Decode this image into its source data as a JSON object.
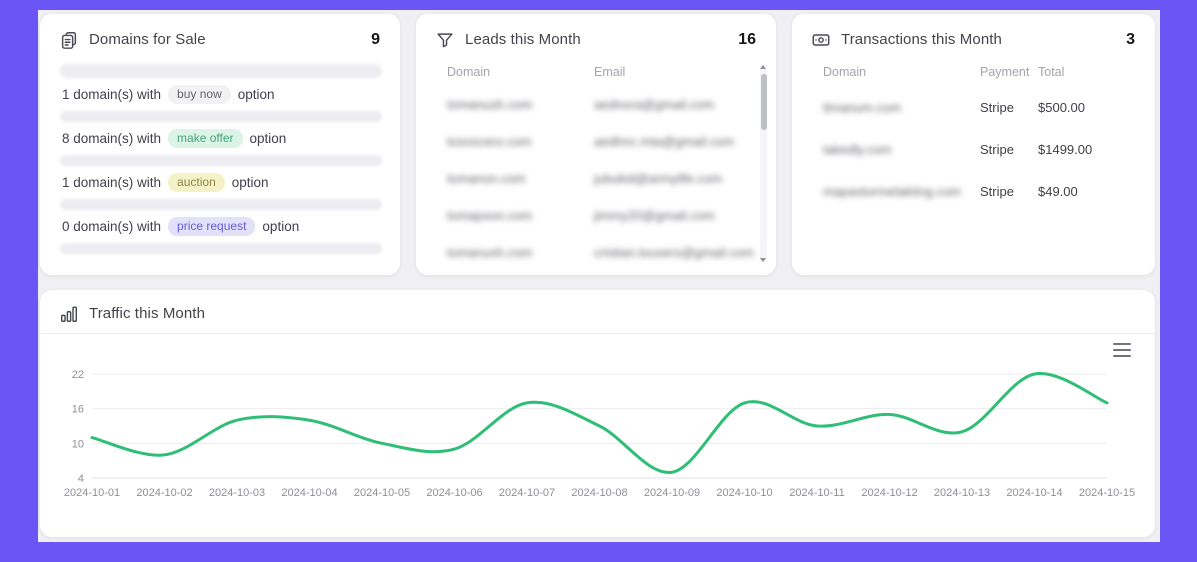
{
  "theme": {
    "frame_color": "#6c55f5",
    "page_bg": "#f0f0f4",
    "card_bg": "#ffffff",
    "accent_green": "#2fbe76"
  },
  "domains_card": {
    "icon": "documents-icon",
    "title": "Domains for Sale",
    "count": "9",
    "items": [
      {
        "prefix": "1 domain(s) with",
        "badge": "buy now",
        "suffix": "option",
        "badge_bg": "#f2f2f4",
        "badge_fg": "#63646c"
      },
      {
        "prefix": "8 domain(s) with",
        "badge": "make offer",
        "suffix": "option",
        "badge_bg": "#dcf3e7",
        "badge_fg": "#43a576"
      },
      {
        "prefix": "1 domain(s) with",
        "badge": "auction",
        "suffix": "option",
        "badge_bg": "#f6f2c8",
        "badge_fg": "#8e8747"
      },
      {
        "prefix": "0 domain(s) with",
        "badge": "price request",
        "suffix": "option",
        "badge_bg": "#e3e1fa",
        "badge_fg": "#655bd1"
      }
    ]
  },
  "leads_card": {
    "icon": "funnel-icon",
    "title": "Leads this Month",
    "count": "16",
    "columns": [
      "Domain",
      "Email"
    ],
    "rows_blurred": true,
    "rows": [
      {
        "domain": "tomanush.com",
        "email": "aednora@gmail.com"
      },
      {
        "domain": "tososcero.com",
        "email": "aedhnc.mta@gmail.com"
      },
      {
        "domain": "tomanon.com",
        "email": "jubukid@armylife.com"
      },
      {
        "domain": "tomapson.com",
        "email": "jimmy20@gmail.com"
      },
      {
        "domain": "tomanush.com",
        "email": "cristian.tousers@gmail.com"
      }
    ]
  },
  "transactions_card": {
    "icon": "banknote-icon",
    "title": "Transactions this Month",
    "count": "3",
    "columns": [
      "Domain",
      "Payment",
      "Total"
    ],
    "domains_blurred": true,
    "rows": [
      {
        "domain": "timanum.com",
        "payment": "Stripe",
        "total": "$500.00"
      },
      {
        "domain": "takedly.com",
        "payment": "Stripe",
        "total": "$1499.00"
      },
      {
        "domain": "mapastormelakting.com",
        "payment": "Stripe",
        "total": "$49.00"
      }
    ]
  },
  "traffic_card": {
    "icon": "bar-chart-icon",
    "title": "Traffic this Month",
    "menu_icon": "hamburger-menu-icon"
  },
  "chart_data": {
    "type": "line",
    "title": "Traffic this Month",
    "x": [
      "2024-10-01",
      "2024-10-02",
      "2024-10-03",
      "2024-10-04",
      "2024-10-05",
      "2024-10-06",
      "2024-10-07",
      "2024-10-08",
      "2024-10-09",
      "2024-10-10",
      "2024-10-11",
      "2024-10-12",
      "2024-10-13",
      "2024-10-14",
      "2024-10-15"
    ],
    "series": [
      {
        "name": "Traffic",
        "values": [
          11,
          8,
          14,
          14,
          10,
          9,
          17,
          13,
          5,
          17,
          13,
          15,
          12,
          22,
          17
        ]
      }
    ],
    "xlabel": "",
    "ylabel": "",
    "ylim": [
      4,
      22
    ],
    "yticks": [
      4,
      10,
      16,
      22
    ],
    "grid": true,
    "smooth": true,
    "legend_position": "none",
    "line_color": "#2fbe76",
    "grid_color": "#ededf0",
    "axis_color": "#e2e3e7",
    "tick_label_color": "#8e8f97"
  }
}
